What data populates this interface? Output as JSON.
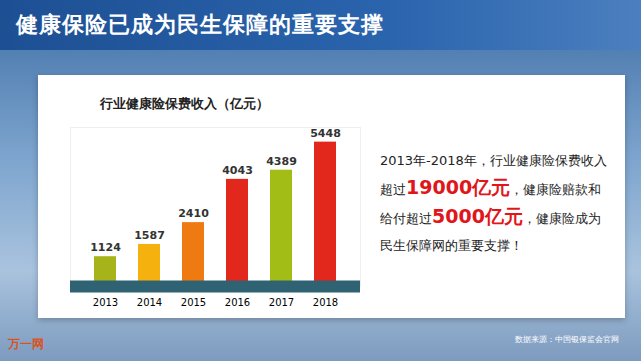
{
  "header": {
    "title": "健康保险已成为民生保障的重要支撑"
  },
  "chart_data": {
    "type": "bar",
    "title": "行业健康险保费收入（亿元）",
    "categories": [
      "2013",
      "2014",
      "2015",
      "2016",
      "2017",
      "2018"
    ],
    "values": [
      1124,
      1587,
      2410,
      4043,
      4389,
      5448
    ],
    "colors": [
      "#a7b419",
      "#f5b20f",
      "#ef7a12",
      "#e2281c",
      "#a3bd17",
      "#e2281c"
    ],
    "ylim": [
      0,
      6000
    ],
    "data_labels": true,
    "tick_labels": "x",
    "grid": false
  },
  "annotation": [
    "2013年-2018年，行业健康险保费收入超过",
    {
      "emphasis": "19000亿元"
    },
    "，健康险赔款和给付超过",
    {
      "emphasis": "5000亿元"
    },
    "，健康险成为民生保障网的重要支撑！"
  ],
  "footer": {
    "source": "数据来源：中国银保监会官网",
    "logo": "万一网"
  }
}
